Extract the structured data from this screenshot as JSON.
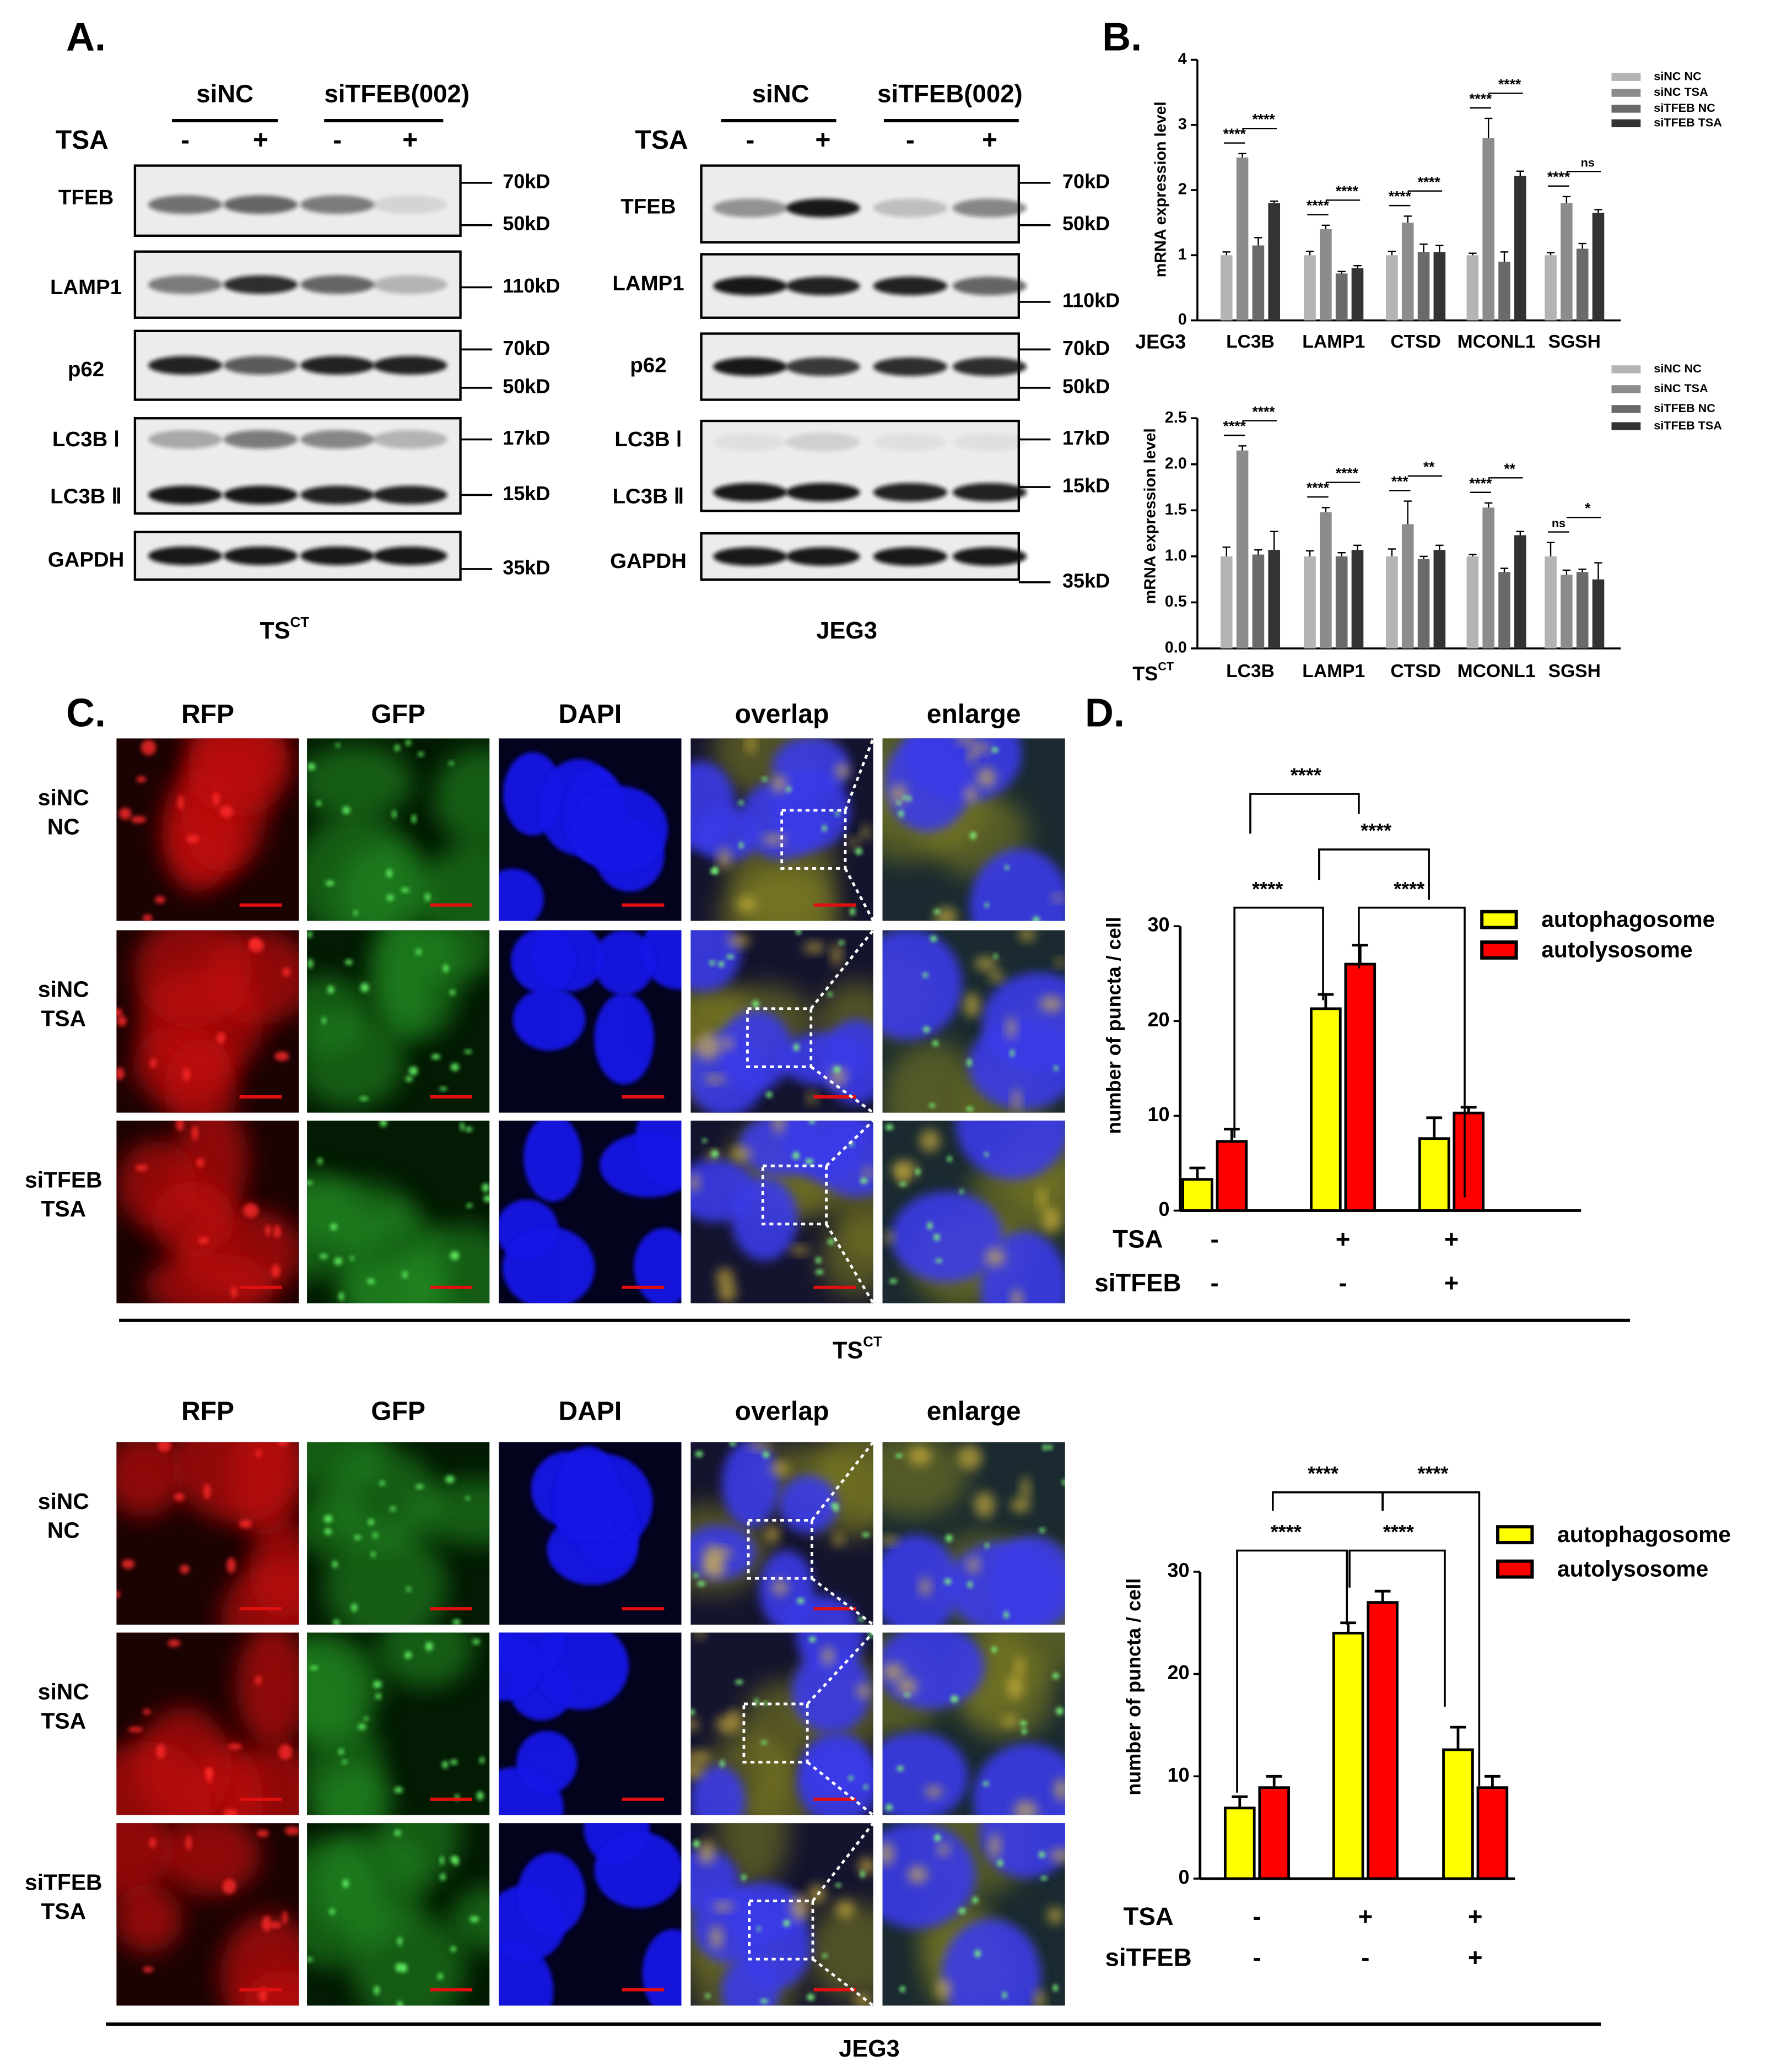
{
  "panel_a": {
    "label": "A.",
    "blots": [
      {
        "groups": [
          "siNC",
          "siTFEB(002)"
        ],
        "treatment": "TSA",
        "lanes": [
          "-",
          "+",
          "-",
          "+"
        ],
        "rows": [
          "TFEB",
          "LAMP1",
          "p62",
          "LC3B Ⅰ",
          "LC3B Ⅱ",
          "GAPDH"
        ],
        "markers": [
          "70kD",
          "50kD",
          "110kD",
          "70kD",
          "50kD",
          "17kD",
          "15kD",
          "35kD"
        ],
        "cell_line": {
          "base": "TS",
          "sup": "CT"
        }
      },
      {
        "groups": [
          "siNC",
          "siTFEB(002)"
        ],
        "treatment": "TSA",
        "lanes": [
          "-",
          "+",
          "-",
          "+"
        ],
        "rows": [
          "TFEB",
          "LAMP1",
          "p62",
          "LC3B Ⅰ",
          "LC3B Ⅱ",
          "GAPDH"
        ],
        "markers": [
          "70kD",
          "50kD",
          "110kD",
          "70kD",
          "50kD",
          "17kD",
          "15kD",
          "35kD"
        ],
        "cell_line": {
          "base": "JEG3"
        }
      }
    ]
  },
  "panel_b": {
    "label": "B."
  },
  "chart_data": [
    {
      "type": "bar",
      "ylabel": "mRNA expression level",
      "cell_line": {
        "base": "JEG3"
      },
      "categories": [
        "LC3B",
        "LAMP1",
        "CTSD",
        "MCONL1",
        "SGSH"
      ],
      "ylim": [
        0,
        4
      ],
      "yticks": [
        0,
        1,
        2,
        3,
        4
      ],
      "series": [
        {
          "name": "siNC NC",
          "color": "#b4b4b4",
          "values": [
            1.0,
            1.0,
            1.0,
            1.0,
            1.0
          ],
          "errors": [
            0.05,
            0.06,
            0.06,
            0.03,
            0.04
          ]
        },
        {
          "name": "siNC TSA",
          "color": "#8c8c8c",
          "values": [
            2.5,
            1.4,
            1.5,
            2.8,
            1.8
          ],
          "errors": [
            0.06,
            0.06,
            0.1,
            0.3,
            0.1
          ]
        },
        {
          "name": "siTFEB NC",
          "color": "#6a6a6a",
          "values": [
            1.15,
            0.72,
            1.05,
            0.9,
            1.1
          ],
          "errors": [
            0.12,
            0.03,
            0.12,
            0.15,
            0.08
          ]
        },
        {
          "name": "siTFEB TSA",
          "color": "#333333",
          "values": [
            1.8,
            0.8,
            1.05,
            2.22,
            1.65
          ],
          "errors": [
            0.03,
            0.04,
            0.1,
            0.07,
            0.05
          ]
        }
      ],
      "significance": [
        [
          "****",
          "****"
        ],
        [
          "****",
          "****"
        ],
        [
          "****",
          "****"
        ],
        [
          "****",
          "****"
        ],
        [
          "****",
          "ns"
        ]
      ]
    },
    {
      "type": "bar",
      "ylabel": "mRNA expression level",
      "cell_line": {
        "base": "TS",
        "sup": "CT"
      },
      "categories": [
        "LC3B",
        "LAMP1",
        "CTSD",
        "MCONL1",
        "SGSH"
      ],
      "ylim": [
        0,
        2.5
      ],
      "yticks": [
        {
          "value": 0,
          "label": "0.0"
        },
        0.5,
        {
          "value": 1,
          "label": "1.0"
        },
        1.5,
        {
          "value": 2,
          "label": "2.0"
        },
        2.5
      ],
      "series": [
        {
          "name": "siNC NC",
          "color": "#b4b4b4",
          "values": [
            1.0,
            1.0,
            1.0,
            1.0,
            1.0
          ],
          "errors": [
            0.1,
            0.06,
            0.08,
            0.02,
            0.15
          ]
        },
        {
          "name": "siNC TSA",
          "color": "#8c8c8c",
          "values": [
            2.15,
            1.48,
            1.35,
            1.53,
            0.8
          ],
          "errors": [
            0.05,
            0.05,
            0.25,
            0.05,
            0.05
          ]
        },
        {
          "name": "siTFEB NC",
          "color": "#6a6a6a",
          "values": [
            1.02,
            1.0,
            0.97,
            0.83,
            0.83
          ],
          "errors": [
            0.05,
            0.04,
            0.03,
            0.04,
            0.03
          ]
        },
        {
          "name": "siTFEB TSA",
          "color": "#333333",
          "values": [
            1.07,
            1.07,
            1.07,
            1.23,
            0.75
          ],
          "errors": [
            0.2,
            0.05,
            0.05,
            0.04,
            0.18
          ]
        }
      ],
      "significance": [
        [
          "****",
          "****"
        ],
        [
          "****",
          "****"
        ],
        [
          "***",
          "**"
        ],
        [
          "****",
          "**"
        ],
        [
          "ns",
          "*"
        ]
      ]
    },
    {
      "type": "bar",
      "ylabel": "number of puncta / cell",
      "categories": [
        null,
        null,
        null
      ],
      "conditions": [
        {
          "name": "TSA",
          "values": [
            "-",
            "+",
            "+"
          ]
        },
        {
          "name": "siTFEB",
          "values": [
            "-",
            "-",
            "+"
          ]
        }
      ],
      "ylim": [
        0,
        30
      ],
      "yticks": [
        0,
        10,
        20,
        30
      ],
      "series": [
        {
          "name": "autophagosome",
          "color": "#ffff00",
          "values": [
            3.3,
            21.3,
            7.6
          ],
          "errors": [
            1.2,
            1.5,
            2.2
          ]
        },
        {
          "name": "autolysosome",
          "color": "#ff0000",
          "values": [
            7.3,
            26,
            10.3
          ],
          "errors": [
            1.3,
            2.0,
            0.6
          ]
        }
      ],
      "significance": [
        "****",
        "****",
        "****",
        "****"
      ]
    },
    {
      "type": "bar",
      "ylabel": "number of puncta / cell",
      "categories": [
        null,
        null,
        null
      ],
      "conditions": [
        {
          "name": "TSA",
          "values": [
            "-",
            "+",
            "+"
          ]
        },
        {
          "name": "siTFEB",
          "values": [
            "-",
            "-",
            "+"
          ]
        }
      ],
      "ylim": [
        0,
        30
      ],
      "yticks": [
        0,
        10,
        20,
        30
      ],
      "series": [
        {
          "name": "autophagosome",
          "color": "#ffff00",
          "values": [
            6.9,
            24,
            12.6
          ],
          "errors": [
            1.1,
            1.0,
            2.2
          ]
        },
        {
          "name": "autolysosome",
          "color": "#ff0000",
          "values": [
            8.9,
            27,
            8.9
          ],
          "errors": [
            1.1,
            1.1,
            1.1
          ]
        }
      ],
      "significance": [
        "****",
        "****",
        "****",
        "****"
      ]
    }
  ],
  "panel_c": {
    "label": "C.",
    "blocks": [
      {
        "channels": [
          "RFP",
          "GFP",
          "DAPI",
          "overlap",
          "enlarge"
        ],
        "conditions": [
          [
            "siNC",
            "NC"
          ],
          [
            "siNC",
            "TSA"
          ],
          [
            "siTFEB",
            "TSA"
          ]
        ],
        "cell_line": {
          "base": "TS",
          "sup": "CT"
        }
      },
      {
        "channels": [
          "RFP",
          "GFP",
          "DAPI",
          "overlap",
          "enlarge"
        ],
        "conditions": [
          [
            "siNC",
            "NC"
          ],
          [
            "siNC",
            "TSA"
          ],
          [
            "siTFEB",
            "TSA"
          ]
        ],
        "cell_line": {
          "base": "JEG3"
        }
      }
    ]
  },
  "panel_d": {
    "label": "D."
  }
}
